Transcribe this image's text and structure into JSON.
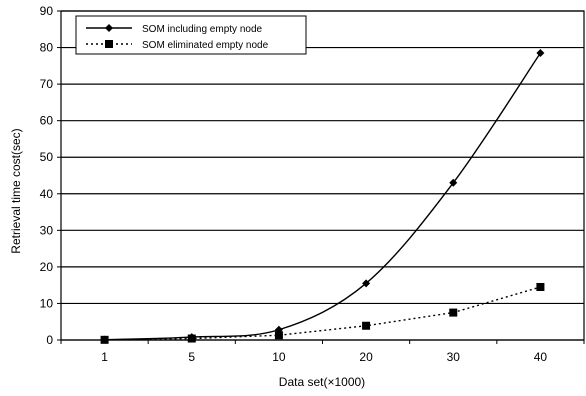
{
  "chart_data": {
    "type": "line",
    "xlabel": "Data set(×1000)",
    "ylabel": "Retrieval time cost(sec)",
    "categories": [
      "1",
      "5",
      "10",
      "20",
      "30",
      "40"
    ],
    "ylim": [
      0,
      90
    ],
    "yticks": [
      "0",
      "10",
      "20",
      "30",
      "40",
      "50",
      "60",
      "70",
      "80",
      "90"
    ],
    "grid": "horizontal",
    "legend_position": "top-left",
    "series": [
      {
        "name": "SOM including empty node",
        "values": [
          0.1,
          0.8,
          2.8,
          15.5,
          43,
          78.5
        ],
        "marker": "diamond",
        "line_style": "solid",
        "color": "#000000"
      },
      {
        "name": "SOM eliminated empty node",
        "values": [
          0.05,
          0.4,
          1.3,
          3.9,
          7.5,
          14.5
        ],
        "marker": "square",
        "line_style": "dotted",
        "color": "#000000"
      }
    ]
  }
}
